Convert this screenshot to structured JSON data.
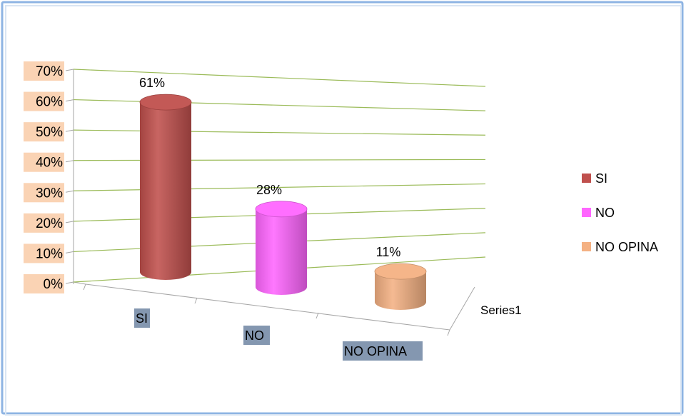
{
  "chart_data": {
    "type": "bar",
    "categories": [
      "SI",
      "NO",
      "NO OPINA"
    ],
    "values": [
      61,
      28,
      11
    ],
    "value_labels": [
      "61%",
      "28%",
      "11%"
    ],
    "yticks": [
      "0%",
      "10%",
      "20%",
      "30%",
      "40%",
      "50%",
      "60%",
      "70%"
    ],
    "ylim": [
      0,
      70
    ],
    "depth_label": "Series1",
    "legend": [
      "SI",
      "NO",
      "NO OPINA"
    ],
    "legend_position": "right",
    "grid": true,
    "colors": {
      "bars": [
        "#C0504D",
        "#FF66FF",
        "#F4B183"
      ],
      "gridline": "#9BBB59",
      "tick_label_bg": "#FAD3B4",
      "category_label_bg": "#8497B0",
      "frame_border": "#8EB4E3"
    }
  }
}
